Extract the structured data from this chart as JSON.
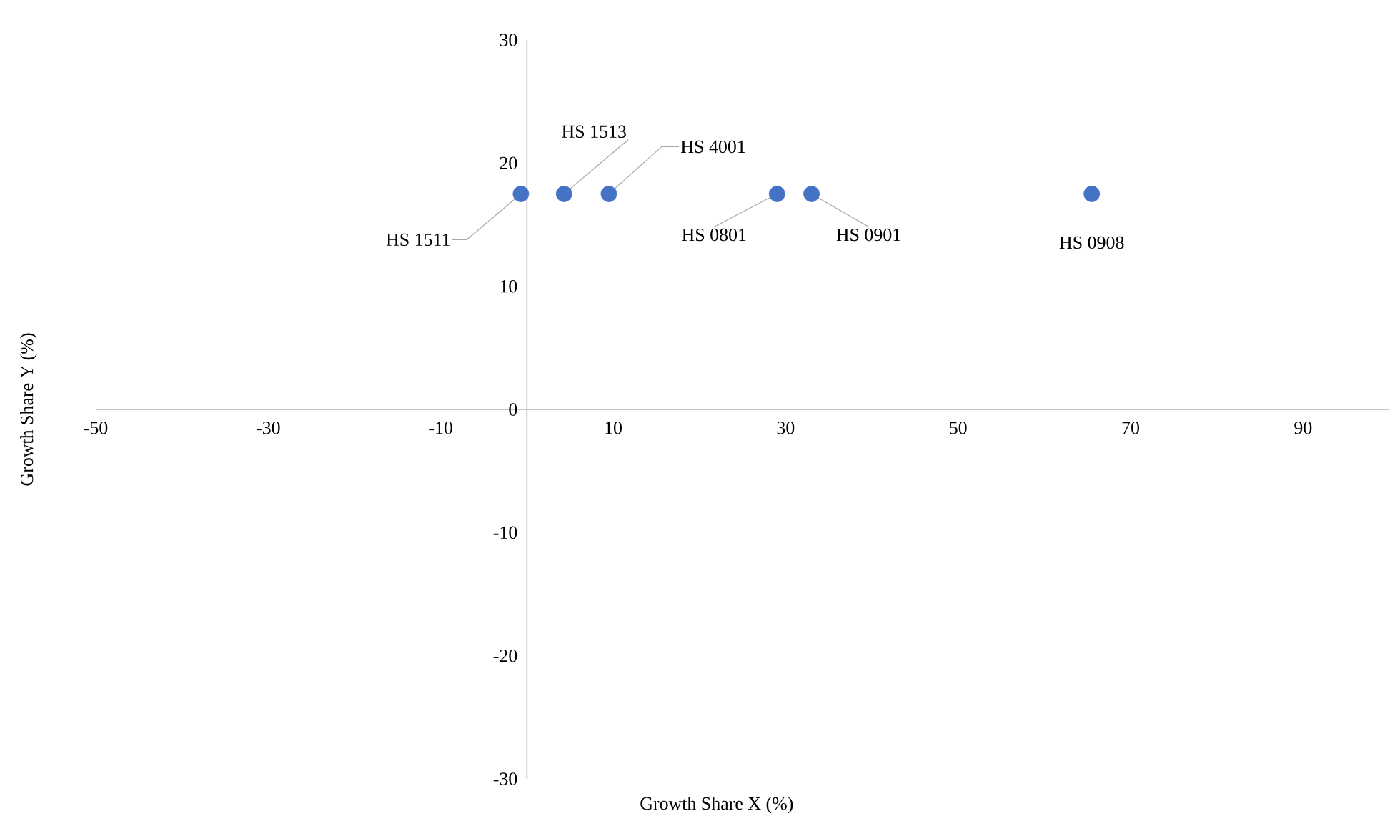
{
  "chart_data": {
    "type": "scatter",
    "xlabel": "Growth Share X (%)",
    "ylabel": "Growth Share Y (%)",
    "x": [
      -0.7,
      4.3,
      9.5,
      29,
      33,
      65.5
    ],
    "values": [
      17.5,
      17.5,
      17.5,
      17.5,
      17.5,
      17.5
    ],
    "color": "#4472c4",
    "xlim": [
      -50,
      100
    ],
    "xticks": [
      -50,
      -30,
      -10,
      10,
      30,
      50,
      70,
      90
    ],
    "ylim": [
      -30,
      30
    ],
    "yticks": [
      -30,
      -20,
      -10,
      0,
      10,
      20,
      30
    ],
    "annotations": [
      {
        "text": "HS 1511",
        "x": -0.7,
        "y": 17.5
      },
      {
        "text": "HS 1513",
        "x": 4.3,
        "y": 17.5
      },
      {
        "text": "HS 4001",
        "x": 9.5,
        "y": 17.5
      },
      {
        "text": "HS 0801",
        "x": 29,
        "y": 17.5
      },
      {
        "text": "HS 0901",
        "x": 33,
        "y": 17.5
      },
      {
        "text": "HS 0908",
        "x": 65.5,
        "y": 17.5
      }
    ]
  }
}
